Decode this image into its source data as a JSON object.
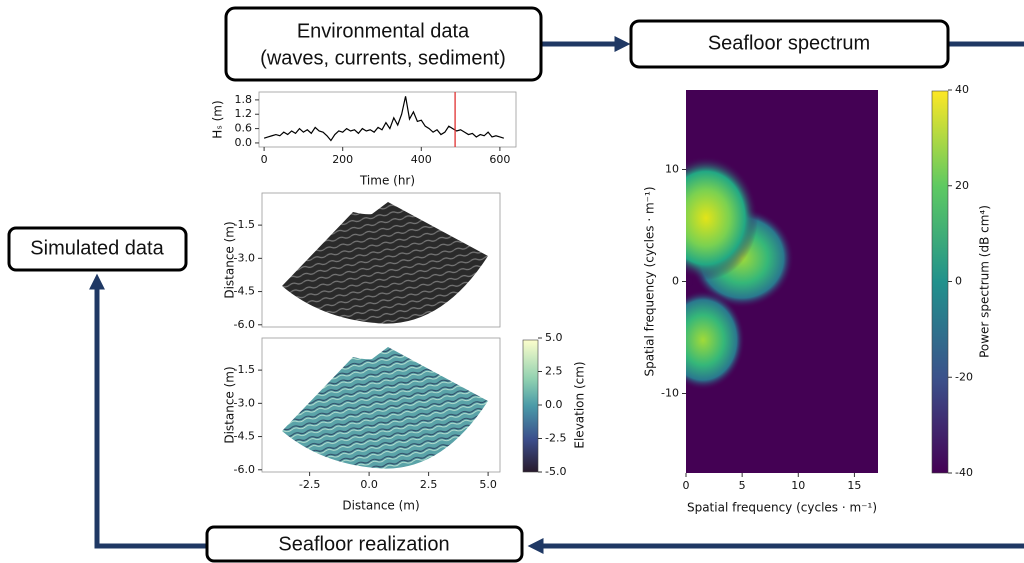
{
  "nodes": [
    {
      "lines": [
        "Environmental data",
        "(waves, currents, sediment)"
      ]
    },
    {
      "lines": [
        "Seafloor spectrum"
      ]
    },
    {
      "lines": [
        "Simulated data"
      ]
    },
    {
      "lines": [
        "Seafloor realization"
      ]
    }
  ],
  "chart_data": [
    {
      "type": "line",
      "xlabel": "Time (hr)",
      "ylabel": "Hₛ (m)",
      "x": [
        0,
        10,
        20,
        30,
        40,
        50,
        60,
        70,
        80,
        90,
        100,
        110,
        120,
        130,
        140,
        150,
        160,
        170,
        180,
        190,
        200,
        210,
        220,
        230,
        240,
        250,
        260,
        270,
        280,
        290,
        300,
        310,
        320,
        330,
        340,
        350,
        360,
        370,
        380,
        390,
        400,
        410,
        420,
        430,
        440,
        450,
        460,
        470,
        480,
        490,
        500,
        510,
        520,
        530,
        540,
        550,
        560,
        570,
        580,
        590,
        600,
        610
      ],
      "series": [
        {
          "color": "#000000",
          "values": [
            0.2,
            0.25,
            0.3,
            0.35,
            0.3,
            0.45,
            0.35,
            0.5,
            0.4,
            0.6,
            0.45,
            0.55,
            0.4,
            0.65,
            0.5,
            0.45,
            0.3,
            0.1,
            0.35,
            0.5,
            0.45,
            0.6,
            0.5,
            0.55,
            0.4,
            0.6,
            0.5,
            0.55,
            0.45,
            0.65,
            0.55,
            0.85,
            0.6,
            1.05,
            0.75,
            1.2,
            1.95,
            1.0,
            1.3,
            0.9,
            0.95,
            0.7,
            0.6,
            0.45,
            0.55,
            0.35,
            0.45,
            0.7,
            0.6,
            0.5,
            0.55,
            0.45,
            0.35,
            0.4,
            0.25,
            0.35,
            0.3,
            0.45,
            0.25,
            0.3,
            0.25,
            0.2
          ]
        }
      ],
      "marker_x": 486,
      "marker_color": "#e03030",
      "xlim": [
        -13,
        641
      ],
      "ylim": [
        -0.17,
        2.13
      ],
      "xticks": [
        0,
        200,
        400,
        600
      ],
      "yticks": [
        {
          "value": 0,
          "label": "0.0"
        },
        0.6,
        1.2,
        1.8
      ]
    },
    {
      "type": "image",
      "ylabel": "Distance (m)",
      "ylim": [
        -6.1,
        -0.05
      ],
      "yticks": [
        -1.5,
        {
          "value": -3,
          "label": "-3.0"
        },
        -4.5,
        {
          "value": -6,
          "label": "-6.0"
        }
      ]
    },
    {
      "type": "image",
      "xlabel": "Distance (m)",
      "ylabel": "Distance (m)",
      "xlim": [
        -4.5,
        5.5
      ],
      "ylim": [
        -6.1,
        -0.05
      ],
      "xticks": [
        -2.5,
        {
          "value": 0,
          "label": "0.0"
        },
        2.5,
        {
          "value": 5,
          "label": "5.0"
        }
      ],
      "yticks": [
        -1.5,
        {
          "value": -3,
          "label": "-3.0"
        },
        -4.5,
        {
          "value": -6,
          "label": "-6.0"
        }
      ],
      "colorbar": {
        "label": "Elevation (cm)",
        "lim": [
          -5,
          5
        ],
        "ticks": [
          {
            "value": 5,
            "label": "5.0"
          },
          2.5,
          {
            "value": 0,
            "label": "0.0"
          },
          -2.5,
          {
            "value": -5,
            "label": "-5.0"
          }
        ]
      }
    },
    {
      "type": "heatmap",
      "xlabel": "Spatial frequency (cycles · m⁻¹)",
      "ylabel": "Spatial frequency (cycles · m⁻¹)",
      "xlim": [
        0,
        17.1
      ],
      "ylim": [
        -17.1,
        17.1
      ],
      "xticks": [
        0,
        5,
        10,
        15
      ],
      "yticks": [
        10,
        0,
        -10
      ],
      "colorbar": {
        "label": "Power spectrum (dB cm⁴)",
        "lim": [
          -40,
          40
        ],
        "ticks": [
          40,
          20,
          0,
          -20,
          -40
        ]
      }
    }
  ]
}
